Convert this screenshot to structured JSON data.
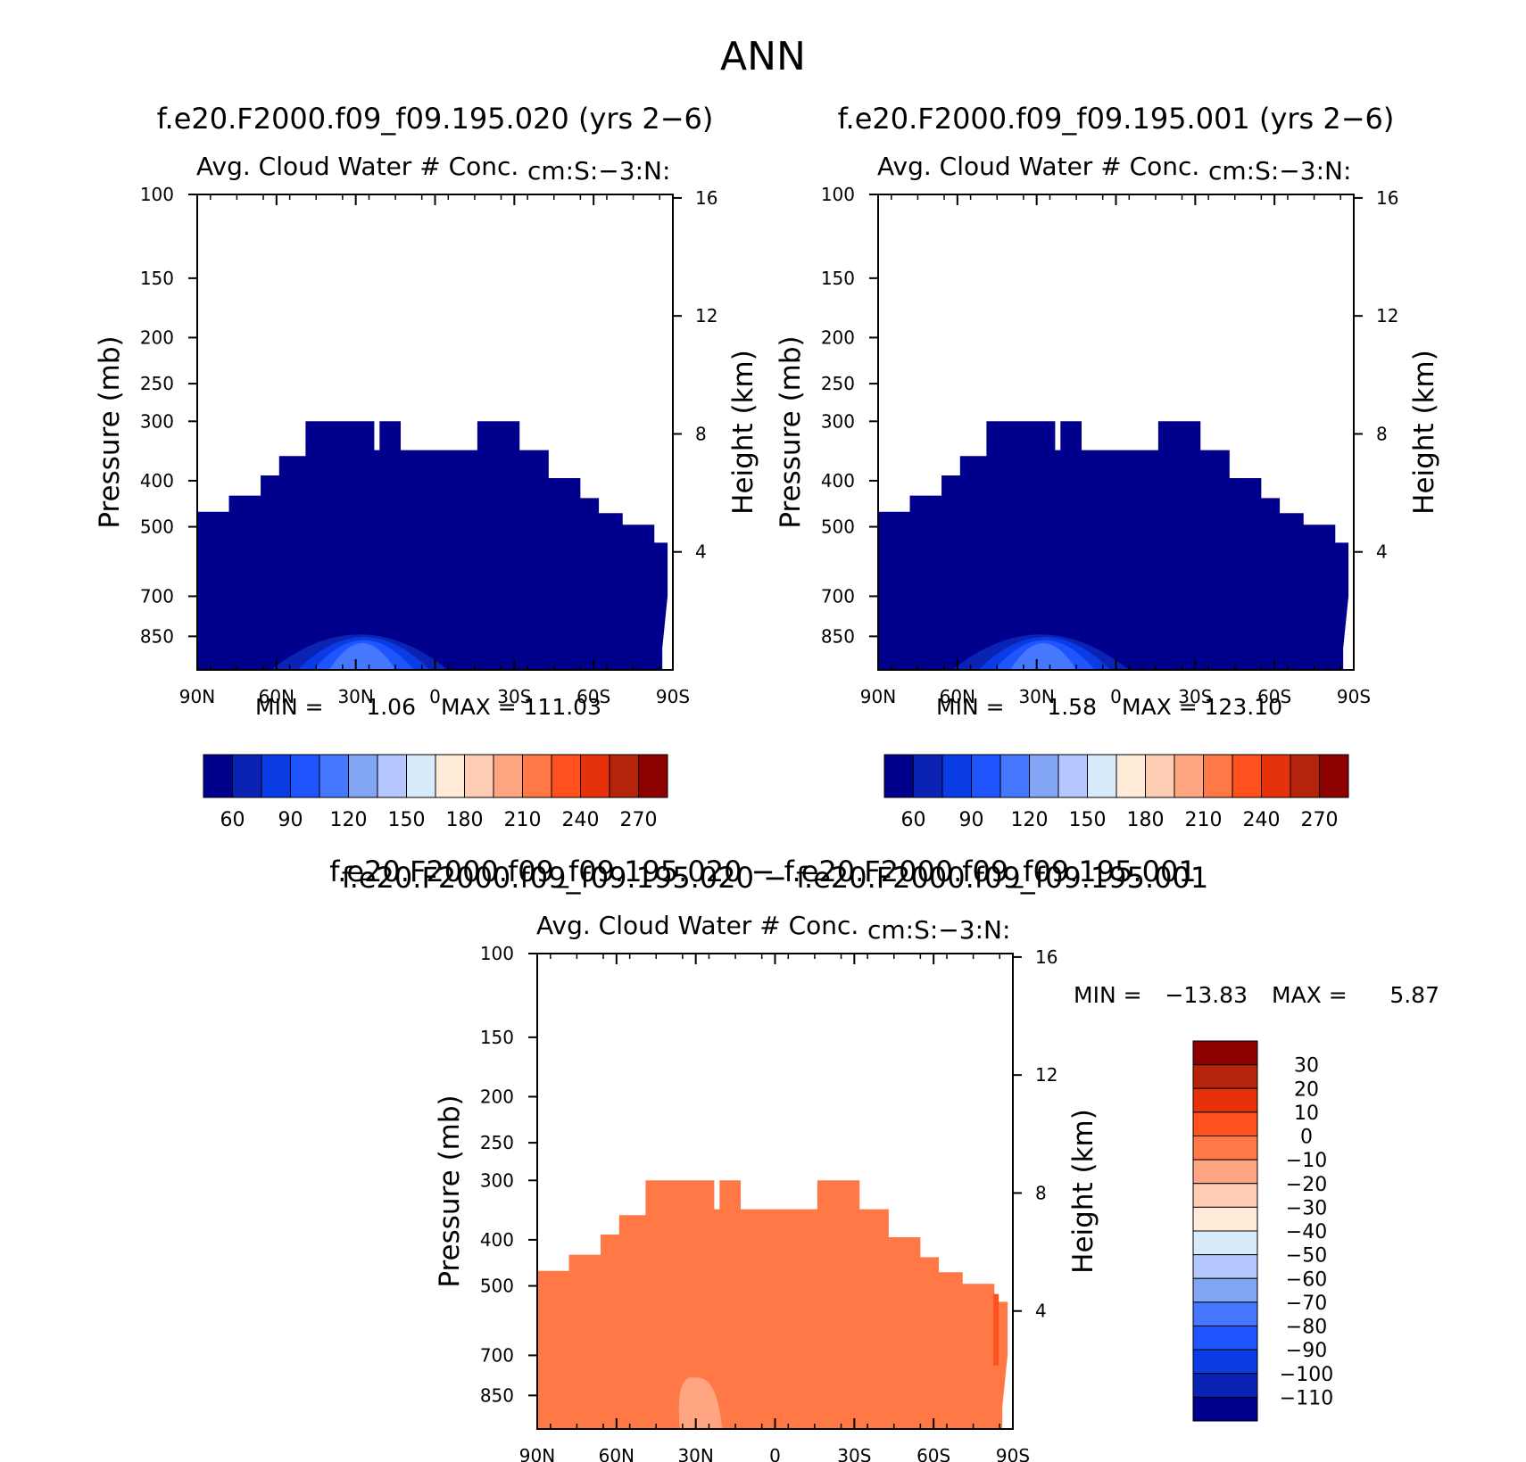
{
  "main_title": "ANN",
  "difference_title": "f.e20.F2000.f09_f09.195.020 − f.e20.F2000.f09_f09.195.001",
  "colors": {
    "abs_palette": [
      "#00008c",
      "#0a23b4",
      "#0a3ce6",
      "#1e55ff",
      "#4678ff",
      "#82a5f5",
      "#b4c8ff",
      "#d7ebfa",
      "#ffebd7",
      "#ffcdb4",
      "#ffa582",
      "#ff7846",
      "#ff501e",
      "#e6320a",
      "#b4230a",
      "#8c0000"
    ],
    "diff_palette": [
      "#00008c",
      "#0a23b4",
      "#0a3ce6",
      "#1e55ff",
      "#4678ff",
      "#82a5f5",
      "#b4c8ff",
      "#d7ebfa",
      "#ffebd7",
      "#ffcdb4",
      "#ffa582",
      "#ff7846",
      "#ff501e",
      "#e6320a",
      "#b4230a",
      "#8c0000"
    ]
  },
  "chart_data": [
    {
      "type": "heatmap",
      "title": "f.e20.F2000.f09_f09.195.020 (yrs 2−6)",
      "subtitle_left": "Avg. Cloud Water # Conc.",
      "subtitle_right": "cm:S:−3:N:",
      "ylabel": "Pressure (mb)",
      "y2label": "Height (km)",
      "x_ticks": [
        "90N",
        "60N",
        "30N",
        "0",
        "30S",
        "60S",
        "90S"
      ],
      "y_ticks": [
        "100",
        "150",
        "200",
        "250",
        "300",
        "400",
        "500",
        "700",
        "850"
      ],
      "y_tick_values": [
        100,
        150,
        200,
        250,
        300,
        400,
        500,
        700,
        850
      ],
      "ylim": [
        100,
        1000
      ],
      "y2_ticks": [
        "16",
        "12",
        "8",
        "4"
      ],
      "y2_tick_values": [
        16,
        12,
        8,
        4
      ],
      "min_label": "MIN =",
      "min_value": "1.06",
      "max_label": "MAX =",
      "max_value": "111.03",
      "colorbar_labels": [
        "60",
        "90",
        "120",
        "150",
        "180",
        "210",
        "240",
        "270"
      ],
      "colorbar_levels": [
        45,
        60,
        75,
        90,
        105,
        120,
        135,
        150,
        165,
        180,
        195,
        210,
        225,
        240,
        255,
        270,
        285
      ]
    },
    {
      "type": "heatmap",
      "title": "f.e20.F2000.f09_f09.195.001 (yrs 2−6)",
      "subtitle_left": "Avg. Cloud Water # Conc.",
      "subtitle_right": "cm:S:−3:N:",
      "ylabel": "Pressure (mb)",
      "y2label": "Height (km)",
      "x_ticks": [
        "90N",
        "60N",
        "30N",
        "0",
        "30S",
        "60S",
        "90S"
      ],
      "y_ticks": [
        "100",
        "150",
        "200",
        "250",
        "300",
        "400",
        "500",
        "700",
        "850"
      ],
      "y_tick_values": [
        100,
        150,
        200,
        250,
        300,
        400,
        500,
        700,
        850
      ],
      "ylim": [
        100,
        1000
      ],
      "y2_ticks": [
        "16",
        "12",
        "8",
        "4"
      ],
      "y2_tick_values": [
        16,
        12,
        8,
        4
      ],
      "min_label": "MIN =",
      "min_value": "1.58",
      "max_label": "MAX =",
      "max_value": "123.10",
      "colorbar_labels": [
        "60",
        "90",
        "120",
        "150",
        "180",
        "210",
        "240",
        "270"
      ],
      "colorbar_levels": [
        45,
        60,
        75,
        90,
        105,
        120,
        135,
        150,
        165,
        180,
        195,
        210,
        225,
        240,
        255,
        270,
        285
      ]
    },
    {
      "type": "heatmap",
      "title": "f.e20.F2000.f09_f09.195.020 − f.e20.F2000.f09_f09.195.001",
      "subtitle_left": "Avg. Cloud Water # Conc.",
      "subtitle_right": "cm:S:−3:N:",
      "ylabel": "Pressure (mb)",
      "y2label": "Height (km)",
      "x_ticks": [
        "90N",
        "60N",
        "30N",
        "0",
        "30S",
        "60S",
        "90S"
      ],
      "y_ticks": [
        "100",
        "150",
        "200",
        "250",
        "300",
        "400",
        "500",
        "700",
        "850"
      ],
      "y_tick_values": [
        100,
        150,
        200,
        250,
        300,
        400,
        500,
        700,
        850
      ],
      "ylim": [
        100,
        1000
      ],
      "y2_ticks": [
        "16",
        "12",
        "8",
        "4"
      ],
      "y2_tick_values": [
        16,
        12,
        8,
        4
      ],
      "min_label": "MIN =",
      "min_value": "−13.83",
      "max_label": "MAX =",
      "max_value": "5.87",
      "colorbar_labels": [
        "30",
        "20",
        "10",
        "0",
        "−10",
        "−20",
        "−30",
        "−40",
        "−50",
        "−60",
        "−70",
        "−80",
        "−90",
        "−100",
        "−110"
      ]
    }
  ]
}
